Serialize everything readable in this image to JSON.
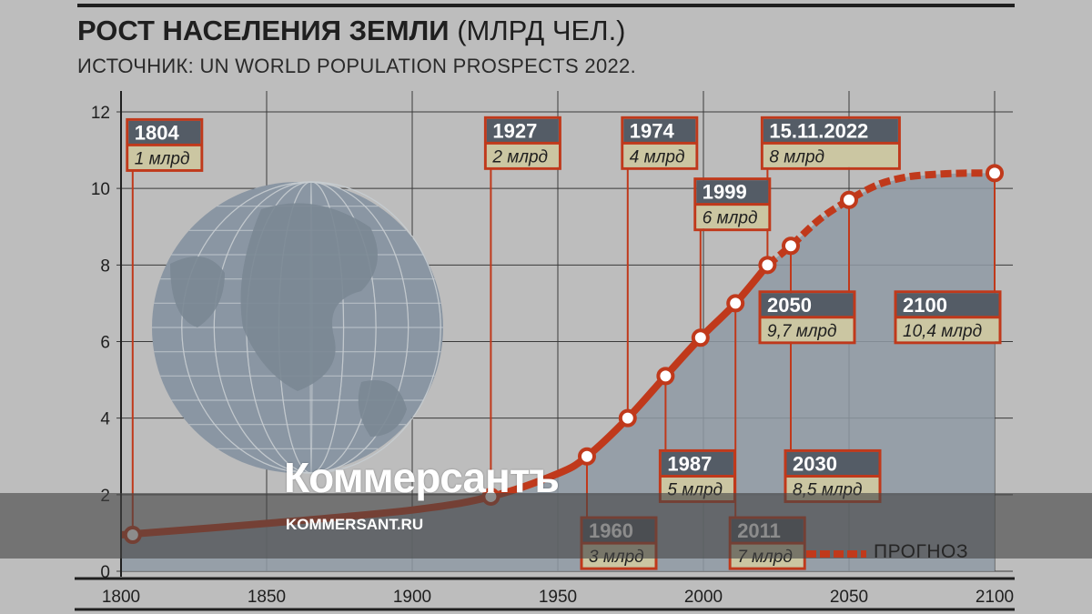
{
  "header": {
    "title_bold": "РОСТ НАСЕЛЕНИЯ ЗЕМЛИ",
    "title_rest": "(МЛРД ЧЕЛ.)",
    "subtitle": "ИСТОЧНИК: UN WORLD POPULATION PROSPECTS 2022."
  },
  "watermark": {
    "logo": "Коммерсантъ",
    "url": "KOMMERSANT.RU"
  },
  "legend": {
    "forecast": "ПРОГНОЗ"
  },
  "colors": {
    "line": "#c0391b",
    "area": "#8f9aa5",
    "globe": "#8a96a3",
    "label_head": "#545c66",
    "label_body": "#cbc6a2",
    "label_border": "#c0391b",
    "axis": "#1f1f1f"
  },
  "chart_data": {
    "type": "line",
    "x_ticks": [
      1800,
      1850,
      1900,
      1950,
      2000,
      2050,
      2100
    ],
    "y_ticks": [
      0,
      2,
      4,
      6,
      8,
      10,
      12
    ],
    "xlim": [
      1800,
      2100
    ],
    "ylim": [
      0,
      12.6
    ],
    "grid": true,
    "series": [
      {
        "name": "",
        "style": "solid",
        "x": [
          1800,
          1850,
          1900,
          1927,
          1950,
          1960,
          1974,
          1987,
          1999,
          2011,
          2022
        ],
        "y": [
          0.95,
          1.25,
          1.6,
          1.95,
          2.55,
          3.0,
          4.0,
          5.1,
          6.1,
          7.0,
          8.0
        ]
      },
      {
        "name": "ПРОГНОЗ",
        "style": "dashed",
        "x": [
          2022,
          2030,
          2040,
          2050,
          2060,
          2070,
          2080,
          2090,
          2100
        ],
        "y": [
          8.0,
          8.5,
          9.2,
          9.7,
          10.1,
          10.3,
          10.37,
          10.4,
          10.4
        ]
      }
    ],
    "milestones": [
      {
        "year": 1804,
        "label": "1804",
        "value": "1 млрд",
        "x": 1804,
        "y": 0.95,
        "box_x": 1804,
        "box_y": 11.8
      },
      {
        "year": 1927,
        "label": "1927",
        "value": "2 млрд",
        "x": 1927,
        "y": 1.95,
        "box_x": 1927,
        "box_y": 11.85
      },
      {
        "year": 1960,
        "label": "1960",
        "value": "3 млрд",
        "x": 1960,
        "y": 3.0,
        "box_x": 1960,
        "box_y": 1.4
      },
      {
        "year": 1974,
        "label": "1974",
        "value": "4 млрд",
        "x": 1974,
        "y": 4.0,
        "box_x": 1974,
        "box_y": 11.85
      },
      {
        "year": 1987,
        "label": "1987",
        "value": "5 млрд",
        "x": 1987,
        "y": 5.1,
        "box_x": 1987,
        "box_y": 3.15
      },
      {
        "year": 1999,
        "label": "1999",
        "value": "6 млрд",
        "x": 1999,
        "y": 6.1,
        "box_x": 1999,
        "box_y": 10.25
      },
      {
        "year": 2011,
        "label": "2011",
        "value": "7 млрд",
        "x": 2011,
        "y": 7.0,
        "box_x": 2011,
        "box_y": 1.4
      },
      {
        "year": 2022,
        "label": "15.11.2022",
        "value": "8 млрд",
        "x": 2022,
        "y": 8.0,
        "box_x": 2022,
        "box_y": 11.85
      },
      {
        "year": 2030,
        "label": "2030",
        "value": "8,5 млрд",
        "x": 2030,
        "y": 8.5,
        "box_x": 2030,
        "box_y": 3.15
      },
      {
        "year": 2050,
        "label": "2050",
        "value": "9,7 млрд",
        "x": 2050,
        "y": 9.7,
        "box_x": 2050,
        "box_y": 7.3
      },
      {
        "year": 2100,
        "label": "2100",
        "value": "10,4 млрд",
        "x": 2100,
        "y": 10.4,
        "box_x": 2100,
        "box_y": 7.3
      }
    ]
  }
}
